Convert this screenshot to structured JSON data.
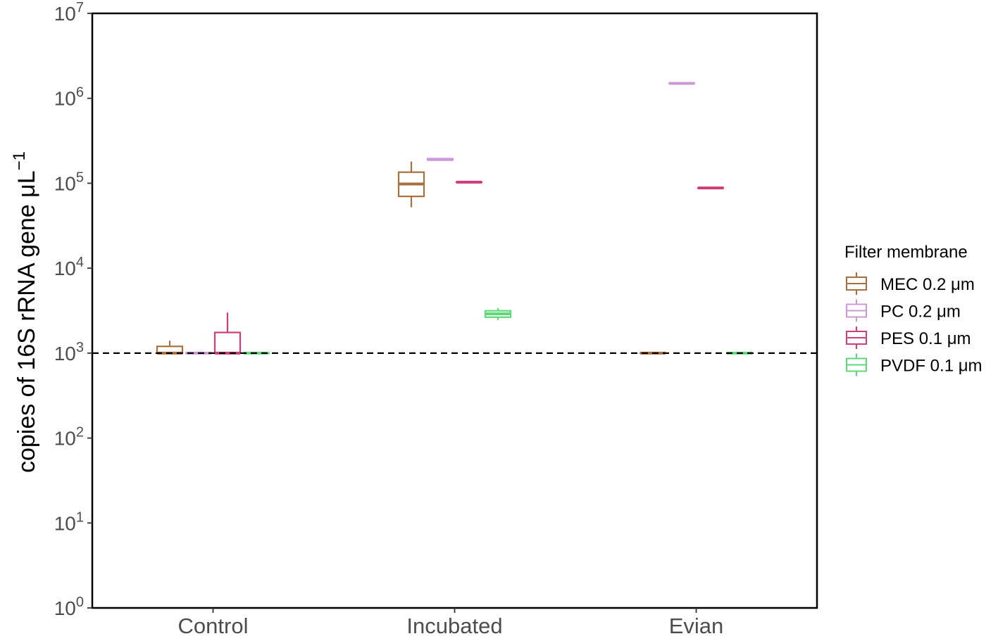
{
  "chart_data": {
    "type": "boxplot",
    "ylabel_main": "copies of 16S rRNA gene μL",
    "ylabel_exp": "−1",
    "yscale": "log10",
    "ylim": [
      1,
      10000000
    ],
    "y_ticks": [
      {
        "base": "10",
        "exp": "0",
        "value": 1
      },
      {
        "base": "10",
        "exp": "1",
        "value": 10
      },
      {
        "base": "10",
        "exp": "2",
        "value": 100
      },
      {
        "base": "10",
        "exp": "3",
        "value": 1000
      },
      {
        "base": "10",
        "exp": "4",
        "value": 10000
      },
      {
        "base": "10",
        "exp": "5",
        "value": 100000
      },
      {
        "base": "10",
        "exp": "6",
        "value": 1000000
      },
      {
        "base": "10",
        "exp": "7",
        "value": 10000000
      }
    ],
    "categories": [
      "Control",
      "Incubated",
      "Evian"
    ],
    "reference_line": {
      "value": 1000,
      "style": "dashed",
      "color": "#000000"
    },
    "legend": {
      "title": "Filter membrane",
      "position": "right"
    },
    "series": [
      {
        "name": "MEC 0.2 μm",
        "color": "#a8703c",
        "boxes": [
          {
            "category": "Control",
            "min": 1000,
            "q1": 1000,
            "median": 1000,
            "q3": 1200,
            "max": 1400
          },
          {
            "category": "Incubated",
            "min": 52000,
            "q1": 70000,
            "median": 98000,
            "q3": 135000,
            "max": 180000
          },
          {
            "category": "Evian",
            "min": 1000,
            "q1": 1000,
            "median": 1000,
            "q3": 1000,
            "max": 1000
          }
        ]
      },
      {
        "name": "PC 0.2 μm",
        "color": "#cc99d6",
        "boxes": [
          {
            "category": "Control",
            "min": 1000,
            "q1": 1000,
            "median": 1000,
            "q3": 1000,
            "max": 1000
          },
          {
            "category": "Incubated",
            "min": 185000,
            "q1": 188000,
            "median": 190000,
            "q3": 195000,
            "max": 198000
          },
          {
            "category": "Evian",
            "min": 1500000,
            "q1": 1500000,
            "median": 1500000,
            "q3": 1500000,
            "max": 1500000
          }
        ]
      },
      {
        "name": "PES 0.1 μm",
        "color": "#cc3d7a",
        "boxes": [
          {
            "category": "Control",
            "min": 1000,
            "q1": 1000,
            "median": 1000,
            "q3": 1750,
            "max": 3000
          },
          {
            "category": "Incubated",
            "min": 103000,
            "q1": 103000,
            "median": 103000,
            "q3": 103000,
            "max": 103000
          },
          {
            "category": "Evian",
            "min": 88000,
            "q1": 88000,
            "median": 88000,
            "q3": 88000,
            "max": 88000
          }
        ]
      },
      {
        "name": "PVDF 0.1 μm",
        "color": "#5fd87a",
        "boxes": [
          {
            "category": "Control",
            "min": 1000,
            "q1": 1000,
            "median": 1000,
            "q3": 1000,
            "max": 1000
          },
          {
            "category": "Incubated",
            "min": 2450,
            "q1": 2650,
            "median": 2900,
            "q3": 3150,
            "max": 3400
          },
          {
            "category": "Evian",
            "min": 1000,
            "q1": 1000,
            "median": 1000,
            "q3": 1000,
            "max": 1000
          }
        ]
      }
    ]
  }
}
